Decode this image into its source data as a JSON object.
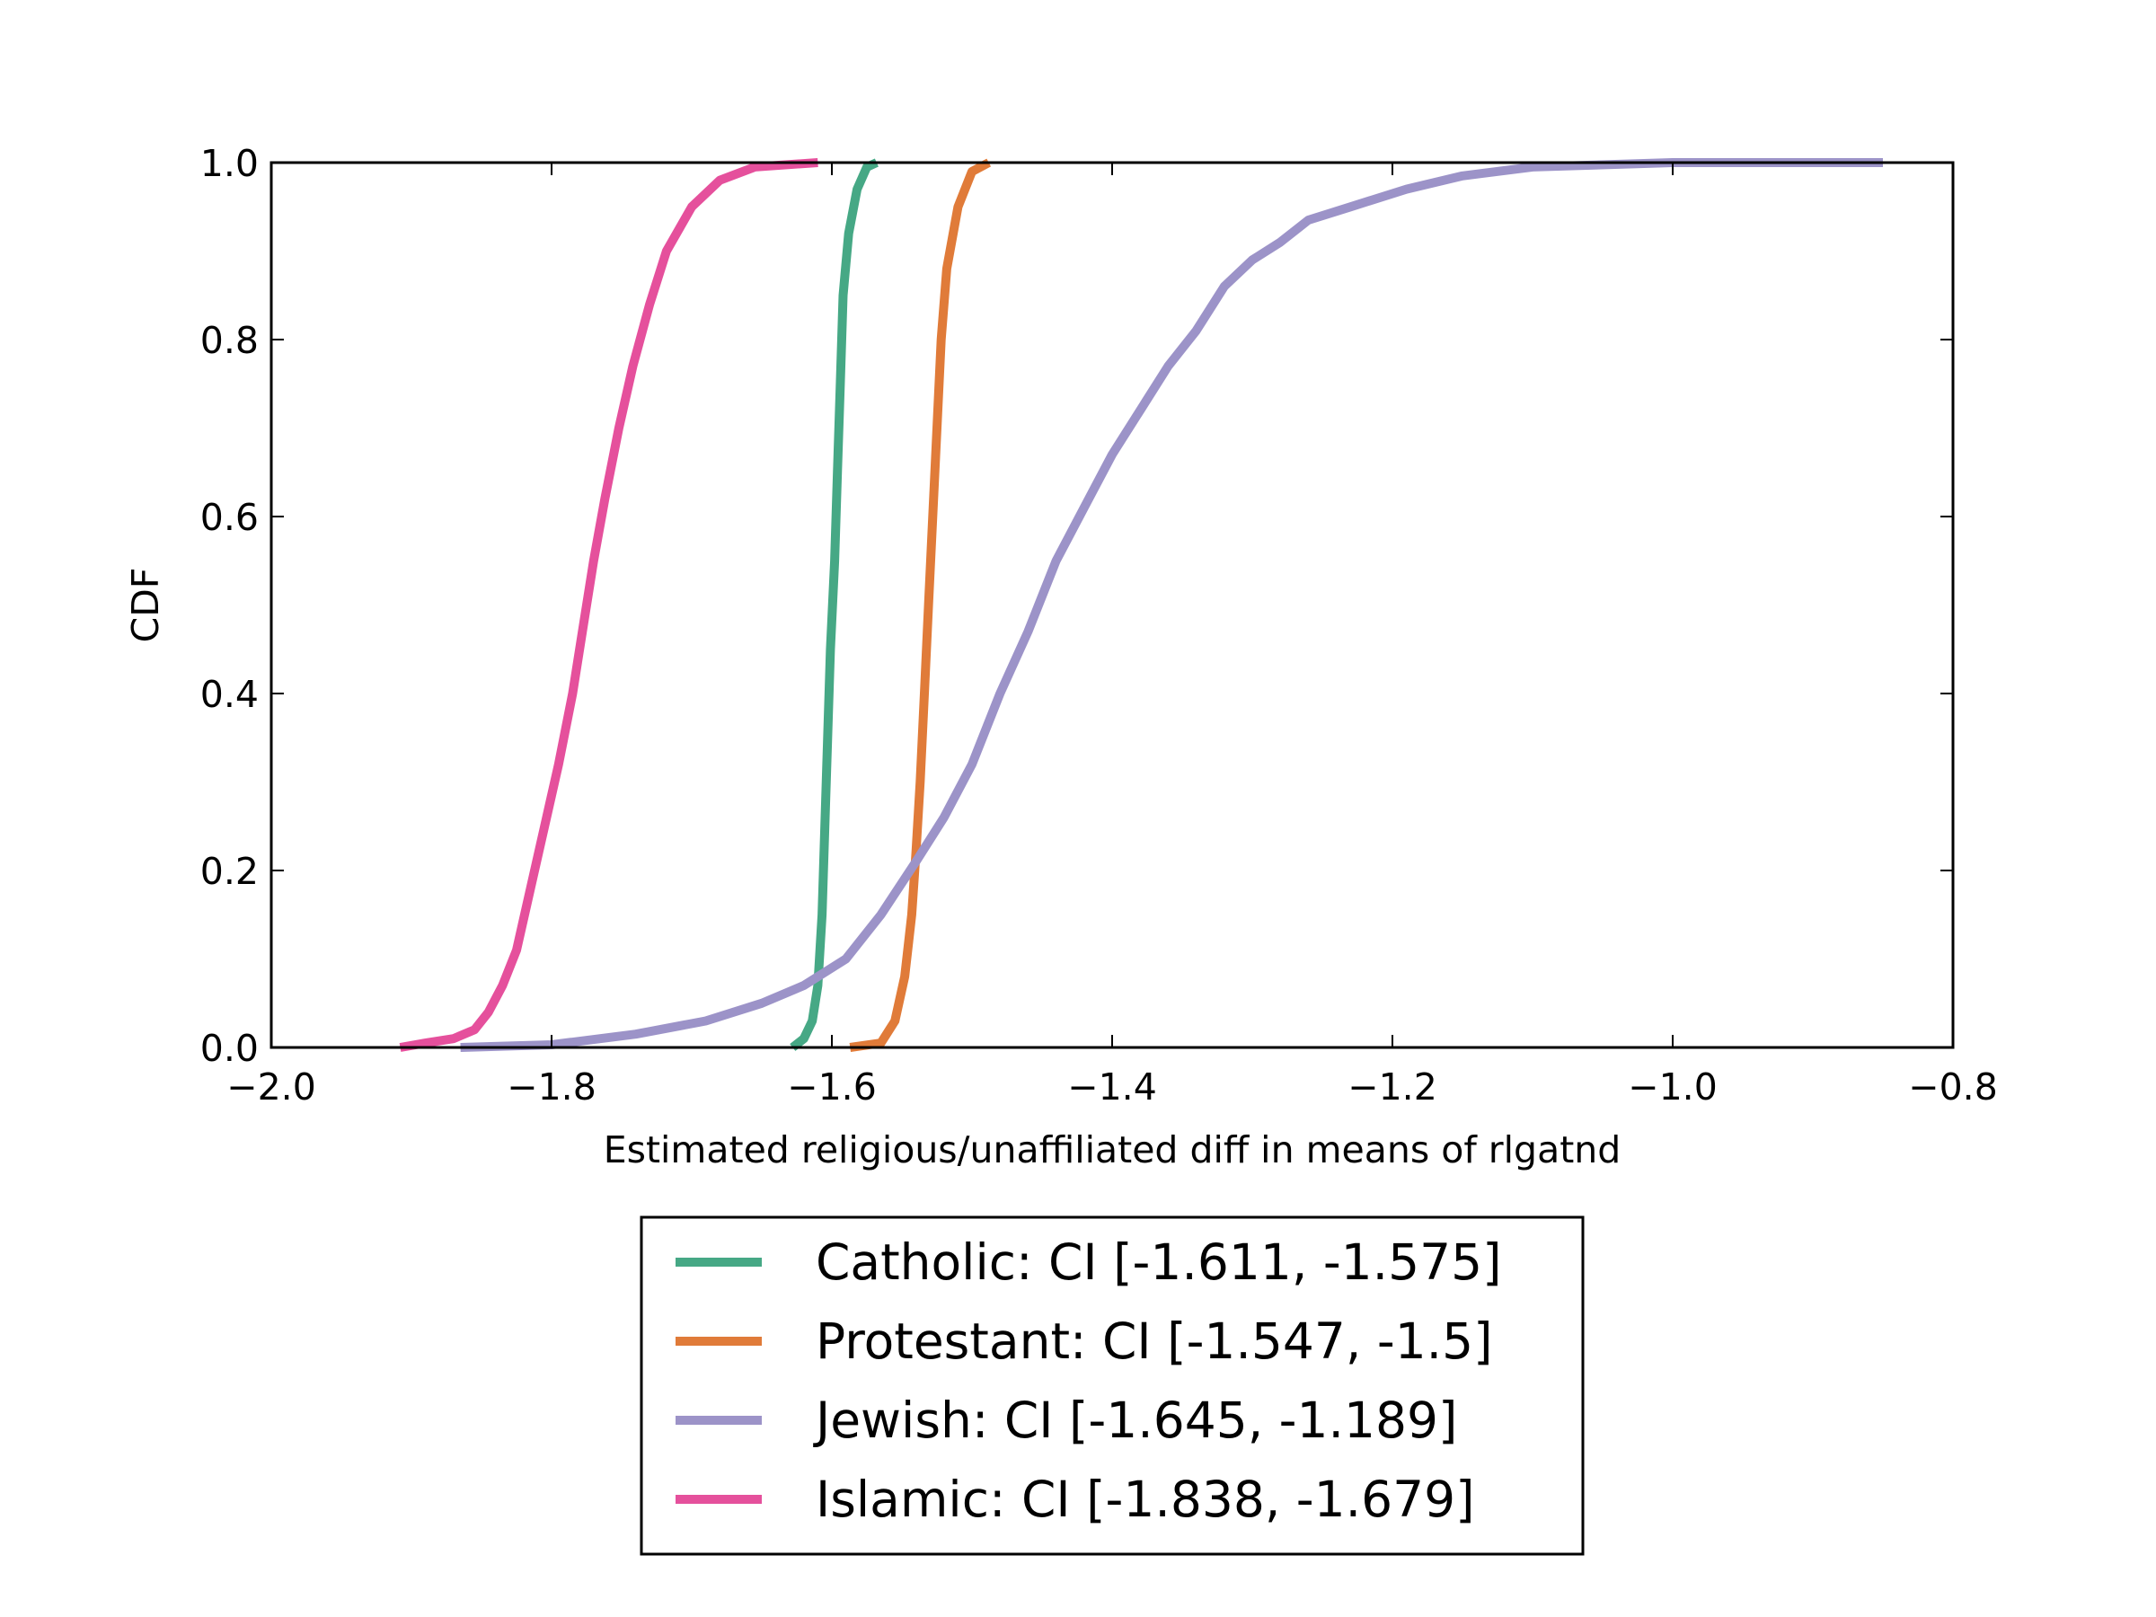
{
  "chart_data": {
    "type": "line",
    "title": "",
    "xlabel": "Estimated religious/unaffiliated diff in means of rlgatnd",
    "ylabel": "CDF",
    "xlim": [
      -2.0,
      -0.8
    ],
    "ylim": [
      0.0,
      1.0
    ],
    "x_ticks": [
      "−2.0",
      "−1.8",
      "−1.6",
      "−1.4",
      "−1.2",
      "−1.0",
      "−0.8"
    ],
    "y_ticks": [
      "0.0",
      "0.2",
      "0.4",
      "0.6",
      "0.8",
      "1.0"
    ],
    "grid": false,
    "legend_position": "below",
    "series": [
      {
        "name": "Catholic: CI [-1.611, -1.575]",
        "color": "#46a885",
        "points": [
          [
            -1.628,
            0.0
          ],
          [
            -1.62,
            0.01
          ],
          [
            -1.614,
            0.03
          ],
          [
            -1.61,
            0.07
          ],
          [
            -1.607,
            0.15
          ],
          [
            -1.605,
            0.25
          ],
          [
            -1.603,
            0.35
          ],
          [
            -1.601,
            0.45
          ],
          [
            -1.598,
            0.55
          ],
          [
            -1.596,
            0.65
          ],
          [
            -1.594,
            0.75
          ],
          [
            -1.592,
            0.85
          ],
          [
            -1.588,
            0.92
          ],
          [
            -1.582,
            0.97
          ],
          [
            -1.575,
            0.995
          ],
          [
            -1.568,
            1.0
          ]
        ]
      },
      {
        "name": "Protestant: CI [-1.547, -1.5]",
        "color": "#e07b39",
        "points": [
          [
            -1.587,
            0.0
          ],
          [
            -1.565,
            0.005
          ],
          [
            -1.555,
            0.03
          ],
          [
            -1.548,
            0.08
          ],
          [
            -1.543,
            0.15
          ],
          [
            -1.54,
            0.22
          ],
          [
            -1.537,
            0.3
          ],
          [
            -1.534,
            0.4
          ],
          [
            -1.531,
            0.5
          ],
          [
            -1.528,
            0.6
          ],
          [
            -1.525,
            0.7
          ],
          [
            -1.522,
            0.8
          ],
          [
            -1.518,
            0.88
          ],
          [
            -1.51,
            0.95
          ],
          [
            -1.5,
            0.99
          ],
          [
            -1.488,
            1.0
          ]
        ]
      },
      {
        "name": "Jewish: CI [-1.645, -1.189]",
        "color": "#9c93c8",
        "points": [
          [
            -1.865,
            0.0
          ],
          [
            -1.8,
            0.003
          ],
          [
            -1.74,
            0.015
          ],
          [
            -1.69,
            0.03
          ],
          [
            -1.65,
            0.05
          ],
          [
            -1.62,
            0.07
          ],
          [
            -1.59,
            0.1
          ],
          [
            -1.565,
            0.15
          ],
          [
            -1.54,
            0.21
          ],
          [
            -1.52,
            0.26
          ],
          [
            -1.5,
            0.32
          ],
          [
            -1.48,
            0.4
          ],
          [
            -1.46,
            0.47
          ],
          [
            -1.44,
            0.55
          ],
          [
            -1.42,
            0.61
          ],
          [
            -1.4,
            0.67
          ],
          [
            -1.38,
            0.72
          ],
          [
            -1.36,
            0.77
          ],
          [
            -1.34,
            0.81
          ],
          [
            -1.32,
            0.86
          ],
          [
            -1.3,
            0.89
          ],
          [
            -1.28,
            0.91
          ],
          [
            -1.26,
            0.935
          ],
          [
            -1.23,
            0.95
          ],
          [
            -1.19,
            0.97
          ],
          [
            -1.15,
            0.985
          ],
          [
            -1.1,
            0.995
          ],
          [
            -1.0,
            1.0
          ],
          [
            -0.85,
            1.0
          ]
        ]
      },
      {
        "name": "Islamic: CI [-1.838, -1.679]",
        "color": "#e5509c",
        "points": [
          [
            -1.908,
            0.0
          ],
          [
            -1.89,
            0.005
          ],
          [
            -1.87,
            0.01
          ],
          [
            -1.855,
            0.02
          ],
          [
            -1.845,
            0.04
          ],
          [
            -1.835,
            0.07
          ],
          [
            -1.825,
            0.11
          ],
          [
            -1.815,
            0.18
          ],
          [
            -1.805,
            0.25
          ],
          [
            -1.795,
            0.32
          ],
          [
            -1.785,
            0.4
          ],
          [
            -1.778,
            0.47
          ],
          [
            -1.77,
            0.55
          ],
          [
            -1.762,
            0.62
          ],
          [
            -1.752,
            0.7
          ],
          [
            -1.742,
            0.77
          ],
          [
            -1.73,
            0.84
          ],
          [
            -1.718,
            0.9
          ],
          [
            -1.7,
            0.95
          ],
          [
            -1.68,
            0.98
          ],
          [
            -1.655,
            0.995
          ],
          [
            -1.61,
            1.0
          ]
        ]
      }
    ]
  }
}
